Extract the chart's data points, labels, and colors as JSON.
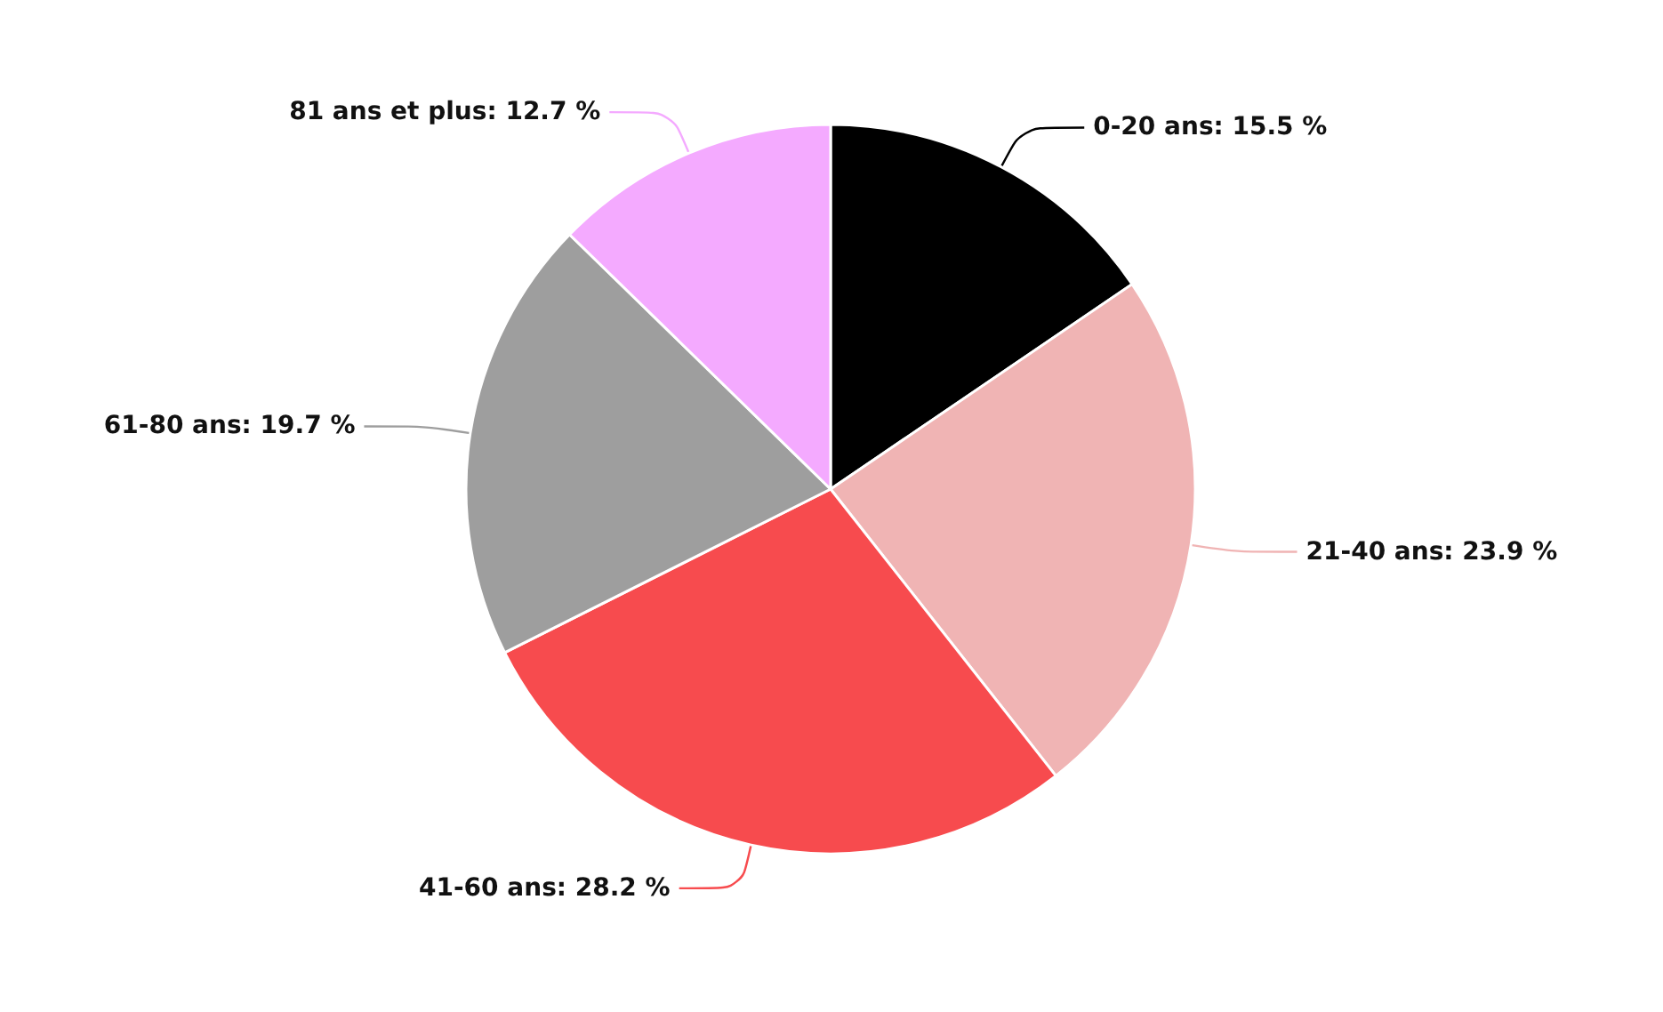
{
  "chart_data": {
    "type": "pie",
    "categories": [
      "0-20 ans",
      "21-40 ans",
      "41-60 ans",
      "61-80 ans",
      "81 ans et plus"
    ],
    "values": [
      15.5,
      23.9,
      28.2,
      19.7,
      12.7
    ],
    "value_labels": [
      "15.5 %",
      "23.9 %",
      "28.2 %",
      "19.7 %",
      "12.7 %"
    ],
    "colors": [
      "#000000",
      "#f0b4b4",
      "#f74b4e",
      "#9e9e9e",
      "#f4aaff"
    ],
    "legend": false
  }
}
